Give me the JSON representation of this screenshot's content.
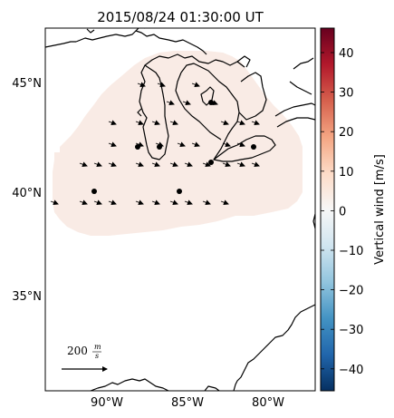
{
  "title": "2015/08/24 01:30:00 UT",
  "map": {
    "lat_ticks": [
      "45°N",
      "40°N",
      "35°N"
    ],
    "lon_ticks": [
      "90°W",
      "85°W",
      "80°W"
    ]
  },
  "colorbar": {
    "label": "Vertical wind [m/s]",
    "ticks": [
      "40",
      "30",
      "20",
      "10",
      "0",
      "−10",
      "−20",
      "−30",
      "−40"
    ],
    "colormap": [
      "#053061",
      "#2166ac",
      "#4393c3",
      "#92c5de",
      "#d1e5f0",
      "#f7f7f7",
      "#fddbc7",
      "#f4a582",
      "#d6604d",
      "#b2182b",
      "#67001f"
    ]
  },
  "scale_arrow": {
    "value": "200",
    "unit_top": "m",
    "unit_bottom": "s"
  },
  "colors": {
    "coverage_fill": "#f9ebe5",
    "coast": "#000000",
    "vector": "#000000",
    "station": "#000000"
  }
}
